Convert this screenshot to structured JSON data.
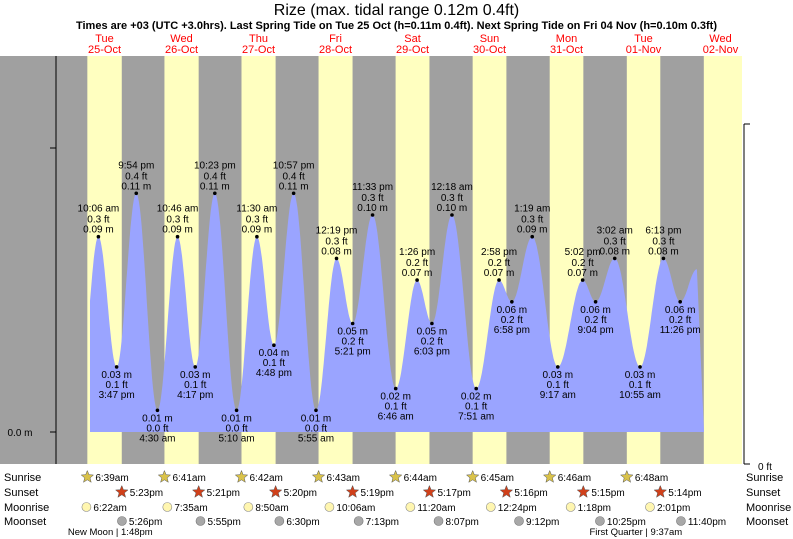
{
  "title": "Rize (max. tidal range 0.12m 0.4ft)",
  "subtitle": "Times are +03 (UTC +3.0hrs). Last Spring Tide on Tue 25 Oct (h=0.11m 0.4ft). Next Spring Tide on Fri 04 Nov (h=0.10m 0.3ft)",
  "colors": {
    "night": "#a0a0a0",
    "day": "#ffffc0",
    "tide": "#9aa4ff",
    "day_header": "#ff0000"
  },
  "chart_data": {
    "type": "area",
    "title": "Rize (max. tidal range 0.12m 0.4ft)",
    "ylabel_left": "0.0 m",
    "ylabel_right": "0 ft",
    "ylim_m": [
      0,
      0.14
    ],
    "days": [
      {
        "name": "Tue",
        "date": "25-Oct"
      },
      {
        "name": "Wed",
        "date": "26-Oct"
      },
      {
        "name": "Thu",
        "date": "27-Oct"
      },
      {
        "name": "Fri",
        "date": "28-Oct"
      },
      {
        "name": "Sat",
        "date": "29-Oct"
      },
      {
        "name": "Sun",
        "date": "30-Oct"
      },
      {
        "name": "Mon",
        "date": "31-Oct"
      },
      {
        "name": "Tue",
        "date": "01-Nov"
      },
      {
        "name": "Wed",
        "date": "02-Nov"
      }
    ],
    "tides": [
      {
        "day": 0,
        "hour": 10.1,
        "m": "0.09 m",
        "ft": "0.3 ft",
        "time": "10:06 am",
        "h": 0.09
      },
      {
        "day": 0,
        "hour": 15.783,
        "m": "0.03 m",
        "ft": "0.1 ft",
        "time": "3:47 pm",
        "h": 0.03
      },
      {
        "day": 0,
        "hour": 21.9,
        "m": "0.11 m",
        "ft": "0.4 ft",
        "time": "9:54 pm",
        "h": 0.11
      },
      {
        "day": 1,
        "hour": 4.5,
        "m": "0.01 m",
        "ft": "0.0 ft",
        "time": "4:30 am",
        "h": 0.01
      },
      {
        "day": 1,
        "hour": 10.767,
        "m": "0.09 m",
        "ft": "0.3 ft",
        "time": "10:46 am",
        "h": 0.09
      },
      {
        "day": 1,
        "hour": 16.283,
        "m": "0.03 m",
        "ft": "0.1 ft",
        "time": "4:17 pm",
        "h": 0.03
      },
      {
        "day": 1,
        "hour": 22.383,
        "m": "0.11 m",
        "ft": "0.4 ft",
        "time": "10:23 pm",
        "h": 0.11
      },
      {
        "day": 2,
        "hour": 5.167,
        "m": "0.01 m",
        "ft": "0.0 ft",
        "time": "5:10 am",
        "h": 0.01
      },
      {
        "day": 2,
        "hour": 11.5,
        "m": "0.09 m",
        "ft": "0.3 ft",
        "time": "11:30 am",
        "h": 0.09
      },
      {
        "day": 2,
        "hour": 16.8,
        "m": "0.04 m",
        "ft": "0.1 ft",
        "time": "4:48 pm",
        "h": 0.04
      },
      {
        "day": 2,
        "hour": 22.95,
        "m": "0.11 m",
        "ft": "0.4 ft",
        "time": "10:57 pm",
        "h": 0.11
      },
      {
        "day": 3,
        "hour": 5.917,
        "m": "0.01 m",
        "ft": "0.0 ft",
        "time": "5:55 am",
        "h": 0.01
      },
      {
        "day": 3,
        "hour": 12.317,
        "m": "0.08 m",
        "ft": "0.3 ft",
        "time": "12:19 pm",
        "h": 0.08
      },
      {
        "day": 3,
        "hour": 17.35,
        "m": "0.05 m",
        "ft": "0.2 ft",
        "time": "5:21 pm",
        "h": 0.05
      },
      {
        "day": 3,
        "hour": 23.55,
        "m": "0.10 m",
        "ft": "0.3 ft",
        "time": "11:33 pm",
        "h": 0.1
      },
      {
        "day": 4,
        "hour": 6.767,
        "m": "0.02 m",
        "ft": "0.1 ft",
        "time": "6:46 am",
        "h": 0.02
      },
      {
        "day": 4,
        "hour": 13.433,
        "m": "0.07 m",
        "ft": "0.2 ft",
        "time": "1:26 pm",
        "h": 0.07
      },
      {
        "day": 4,
        "hour": 18.05,
        "m": "0.05 m",
        "ft": "0.2 ft",
        "time": "6:03 pm",
        "h": 0.05
      },
      {
        "day": 5,
        "hour": 0.3,
        "m": "0.10 m",
        "ft": "0.3 ft",
        "time": "12:18 am",
        "h": 0.1
      },
      {
        "day": 5,
        "hour": 7.85,
        "m": "0.02 m",
        "ft": "0.1 ft",
        "time": "7:51 am",
        "h": 0.02
      },
      {
        "day": 5,
        "hour": 14.967,
        "m": "0.07 m",
        "ft": "0.2 ft",
        "time": "2:58 pm",
        "h": 0.07
      },
      {
        "day": 5,
        "hour": 18.967,
        "m": "0.06 m",
        "ft": "0.2 ft",
        "time": "6:58 pm",
        "h": 0.06
      },
      {
        "day": 6,
        "hour": 1.317,
        "m": "0.09 m",
        "ft": "0.3 ft",
        "time": "1:19 am",
        "h": 0.09
      },
      {
        "day": 6,
        "hour": 9.283,
        "m": "0.03 m",
        "ft": "0.1 ft",
        "time": "9:17 am",
        "h": 0.03
      },
      {
        "day": 6,
        "hour": 17.033,
        "m": "0.07 m",
        "ft": "0.2 ft",
        "time": "5:02 pm",
        "h": 0.07
      },
      {
        "day": 6,
        "hour": 21.067,
        "m": "0.06 m",
        "ft": "0.2 ft",
        "time": "9:04 pm",
        "h": 0.06
      },
      {
        "day": 7,
        "hour": 3.033,
        "m": "0.08 m",
        "ft": "0.3 ft",
        "time": "3:02 am",
        "h": 0.08
      },
      {
        "day": 7,
        "hour": 10.917,
        "m": "0.03 m",
        "ft": "0.1 ft",
        "time": "10:55 am",
        "h": 0.03
      },
      {
        "day": 7,
        "hour": 18.217,
        "m": "0.08 m",
        "ft": "0.3 ft",
        "time": "6:13 pm",
        "h": 0.08
      },
      {
        "day": 7,
        "hour": 23.433,
        "m": "0.06 m",
        "ft": "0.2 ft",
        "time": "11:26 pm",
        "h": 0.06
      }
    ],
    "sun": [
      {
        "sunrise": "6:39am",
        "rise_h": 6.65,
        "sunset": "5:23pm",
        "set_h": 17.383,
        "moonrise": "6:22am",
        "mr_h": 6.367,
        "moonset": "5:26pm",
        "ms_h": 17.433
      },
      {
        "sunrise": "6:41am",
        "rise_h": 6.683,
        "sunset": "5:21pm",
        "set_h": 17.35,
        "moonrise": "7:35am",
        "mr_h": 7.583,
        "moonset": "5:55pm",
        "ms_h": 17.917
      },
      {
        "sunrise": "6:42am",
        "rise_h": 6.7,
        "sunset": "5:20pm",
        "set_h": 17.333,
        "moonrise": "8:50am",
        "mr_h": 8.833,
        "moonset": "6:30pm",
        "ms_h": 18.5
      },
      {
        "sunrise": "6:43am",
        "rise_h": 6.717,
        "sunset": "5:19pm",
        "set_h": 17.317,
        "moonrise": "10:06am",
        "mr_h": 10.1,
        "moonset": "7:13pm",
        "ms_h": 19.217
      },
      {
        "sunrise": "6:44am",
        "rise_h": 6.733,
        "sunset": "5:17pm",
        "set_h": 17.283,
        "moonrise": "11:20am",
        "mr_h": 11.333,
        "moonset": "8:07pm",
        "ms_h": 20.117
      },
      {
        "sunrise": "6:45am",
        "rise_h": 6.75,
        "sunset": "5:16pm",
        "set_h": 17.267,
        "moonrise": "12:24pm",
        "mr_h": 12.4,
        "moonset": "9:12pm",
        "ms_h": 21.2
      },
      {
        "sunrise": "6:46am",
        "rise_h": 6.767,
        "sunset": "5:15pm",
        "set_h": 17.25,
        "moonrise": "1:18pm",
        "mr_h": 13.3,
        "moonset": "10:25pm",
        "ms_h": 22.417
      },
      {
        "sunrise": "6:48am",
        "rise_h": 6.8,
        "sunset": "5:14pm",
        "set_h": 17.233,
        "moonrise": "2:01pm",
        "mr_h": 14.017,
        "moonset": "11:40pm",
        "ms_h": 23.667
      }
    ],
    "row_labels": [
      "Sunrise",
      "Sunset",
      "Moonrise",
      "Moonset"
    ],
    "moon_phases": [
      {
        "label": "New Moon",
        "time": "1:48pm",
        "day": 0,
        "hour": 13.8
      },
      {
        "label": "First Quarter",
        "time": "9:37am",
        "day": 7,
        "hour": 9.617
      }
    ]
  }
}
